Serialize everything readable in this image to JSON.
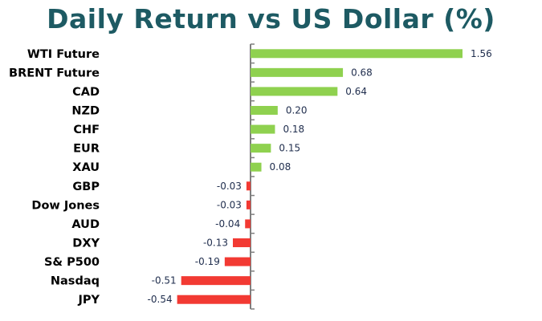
{
  "chart_data": {
    "type": "bar",
    "orientation": "horizontal",
    "title": "Daily Return vs US Dollar (%)",
    "categories": [
      "WTI Future",
      "BRENT Future",
      "CAD",
      "NZD",
      "CHF",
      "EUR",
      "XAU",
      "GBP",
      "Dow Jones",
      "AUD",
      "DXY",
      "S& P500",
      "Nasdaq",
      "JPY"
    ],
    "values": [
      1.56,
      0.68,
      0.64,
      0.2,
      0.18,
      0.15,
      0.08,
      -0.03,
      -0.03,
      -0.04,
      -0.13,
      -0.19,
      -0.51,
      -0.54
    ],
    "value_labels": [
      "1.56",
      "0.68",
      "0.64",
      "0.20",
      "0.18",
      "0.15",
      "0.08",
      "-0.03",
      "-0.03",
      "-0.04",
      "-0.13",
      "-0.19",
      "-0.51",
      "-0.54"
    ],
    "xlim": [
      -0.55,
      1.6
    ],
    "xlabel": "",
    "ylabel": "",
    "grid": false,
    "legend": "none",
    "colors": {
      "positive": "#8fd14f",
      "negative": "#f23a33",
      "title": "#1d5a63",
      "axis": "#7f7f7f"
    }
  }
}
